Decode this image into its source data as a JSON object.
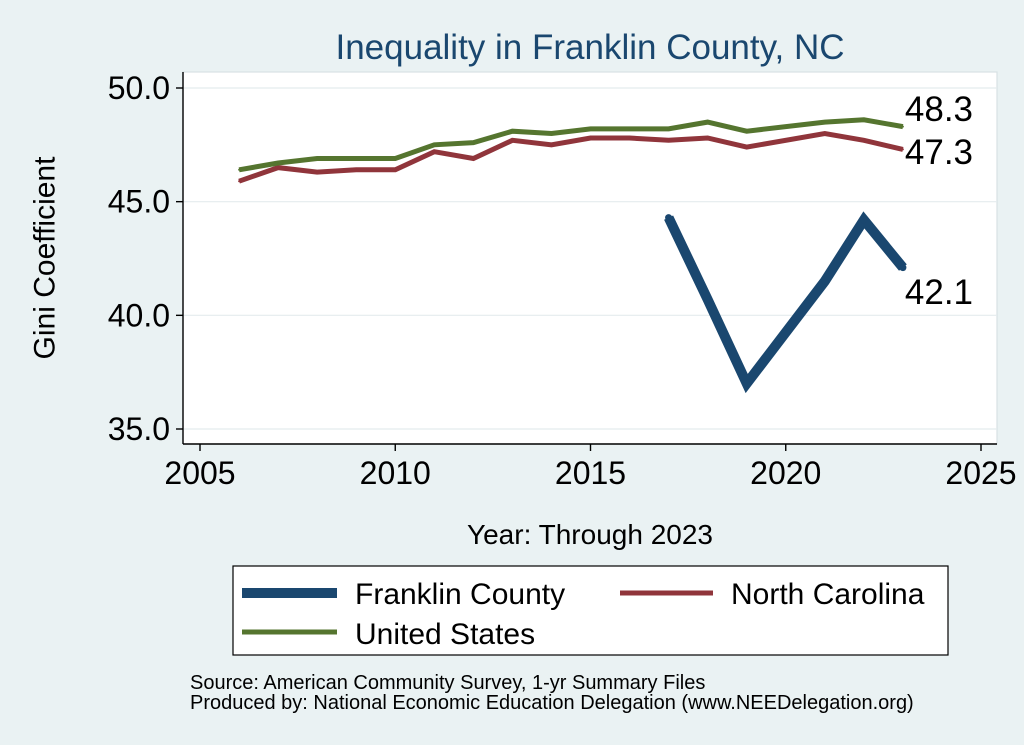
{
  "chart_data": {
    "type": "line",
    "title": "Inequality in Franklin County, NC",
    "xlabel": "Year: Through 2023",
    "ylabel": "Gini Coefficient",
    "xlim": [
      2005,
      2025
    ],
    "ylim": [
      35,
      50
    ],
    "xticks": [
      2005,
      2010,
      2015,
      2020,
      2025
    ],
    "xtick_labels": [
      "2005",
      "2010",
      "2015",
      "2020",
      "2025"
    ],
    "yticks": [
      35,
      40,
      45,
      50
    ],
    "ytick_labels": [
      "35.0",
      "40.0",
      "45.0",
      "50.0"
    ],
    "grid": "horizontal",
    "legend": {
      "position": "bottom",
      "columns": 2
    },
    "series": [
      {
        "name": "Franklin County",
        "color": "#1a476f",
        "x": [
          2017,
          2018,
          2019,
          2021,
          2022,
          2023
        ],
        "y": [
          44.3,
          40.7,
          37.0,
          41.5,
          44.2,
          42.1
        ],
        "end_label": "42.1"
      },
      {
        "name": "North Carolina",
        "color": "#90353b",
        "x": [
          2006,
          2007,
          2008,
          2009,
          2010,
          2011,
          2012,
          2013,
          2014,
          2015,
          2016,
          2017,
          2018,
          2019,
          2021,
          2022,
          2023
        ],
        "y": [
          45.9,
          46.5,
          46.3,
          46.4,
          46.4,
          47.2,
          46.9,
          47.7,
          47.5,
          47.8,
          47.8,
          47.7,
          47.8,
          47.4,
          48.0,
          47.7,
          47.3
        ],
        "end_label": "47.3"
      },
      {
        "name": "United States",
        "color": "#55752f",
        "x": [
          2006,
          2007,
          2008,
          2009,
          2010,
          2011,
          2012,
          2013,
          2014,
          2015,
          2016,
          2017,
          2018,
          2019,
          2021,
          2022,
          2023
        ],
        "y": [
          46.4,
          46.7,
          46.9,
          46.9,
          46.9,
          47.5,
          47.6,
          48.1,
          48.0,
          48.2,
          48.2,
          48.2,
          48.5,
          48.1,
          48.5,
          48.6,
          48.3
        ],
        "end_label": "48.3"
      }
    ],
    "notes": [
      "Source: American Community Survey, 1-yr Summary Files",
      "Produced by: National Economic Education Delegation (www.NEEDelegation.org)"
    ]
  },
  "colors": {
    "background": "#eaf2f3",
    "plot": "#ffffff",
    "plot_border": "#d8e1e4",
    "grid": "#e4ecee",
    "title": "#1a476f",
    "axis": "#000000"
  }
}
